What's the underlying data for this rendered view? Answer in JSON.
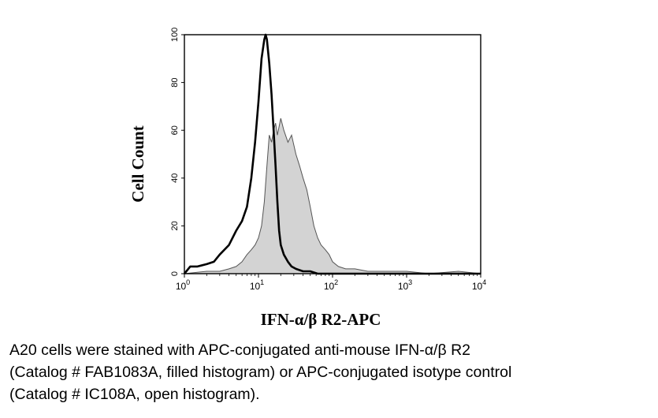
{
  "chart_data": {
    "type": "area",
    "xlabel": "IFN-α/β R2-APC",
    "ylabel": "Cell Count",
    "x_scale": "log",
    "xlim": [
      1,
      10000
    ],
    "ylim": [
      0,
      100
    ],
    "x_ticks": [
      {
        "value": 1,
        "base": "10",
        "exp": "0"
      },
      {
        "value": 10,
        "base": "10",
        "exp": "1"
      },
      {
        "value": 100,
        "base": "10",
        "exp": "2"
      },
      {
        "value": 1000,
        "base": "10",
        "exp": "3"
      },
      {
        "value": 10000,
        "base": "10",
        "exp": "4"
      }
    ],
    "y_ticks": [
      "0",
      "20",
      "40",
      "60",
      "80",
      "100"
    ],
    "y_tick_values": [
      0,
      20,
      40,
      60,
      80,
      100
    ],
    "grid": false,
    "series": [
      {
        "style": "filled",
        "fill": "#d3d3d3",
        "stroke": "#555555",
        "x": [
          1,
          2,
          3,
          4,
          5,
          6,
          7,
          8,
          9,
          10,
          11,
          12,
          13,
          14,
          15,
          16,
          17,
          18,
          20,
          22,
          25,
          28,
          32,
          36,
          40,
          45,
          50,
          56,
          63,
          70,
          80,
          90,
          100,
          120,
          150,
          200,
          300,
          500,
          1000,
          2000,
          5000,
          10000
        ],
        "y": [
          0,
          1,
          1,
          2,
          3,
          5,
          8,
          10,
          12,
          15,
          20,
          30,
          45,
          58,
          55,
          60,
          63,
          58,
          65,
          60,
          55,
          58,
          50,
          45,
          40,
          35,
          28,
          20,
          15,
          12,
          10,
          8,
          5,
          3,
          2,
          2,
          1,
          1,
          1,
          0,
          1,
          0
        ]
      },
      {
        "style": "open",
        "stroke": "#000000",
        "x": [
          1,
          1.2,
          1.5,
          2,
          2.5,
          3,
          4,
          5,
          6,
          7,
          8,
          9,
          10,
          11,
          12,
          12.5,
          13,
          14,
          15,
          16,
          17,
          18,
          19,
          20,
          22,
          25,
          28,
          32,
          40,
          50,
          63,
          80,
          100,
          150,
          200,
          300,
          500,
          1000,
          3000,
          10000
        ],
        "y": [
          0,
          3,
          3,
          4,
          5,
          8,
          12,
          18,
          22,
          28,
          40,
          55,
          72,
          90,
          98,
          100,
          98,
          88,
          75,
          60,
          45,
          30,
          18,
          12,
          8,
          5,
          3,
          2,
          1,
          1,
          0,
          0,
          0,
          0,
          0,
          0,
          0,
          0,
          0,
          0
        ]
      }
    ]
  },
  "caption": {
    "line1": "A20 cells were stained with APC-conjugated anti-mouse IFN-α/β R2",
    "line2": "(Catalog # FAB1083A, filled histogram) or APC-conjugated isotype control",
    "line3": "(Catalog # IC108A, open histogram)."
  }
}
